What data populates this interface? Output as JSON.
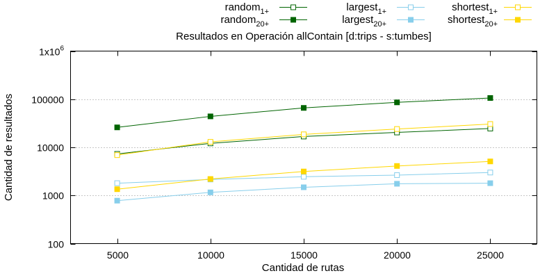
{
  "chart_data": {
    "type": "line",
    "title": "Resultados en Operación allContain [d:trips - s:tumbes]",
    "xlabel": "Cantidad de rutas",
    "ylabel": "Cantidad de resultados",
    "x": [
      5000,
      10000,
      15000,
      20000,
      25000
    ],
    "x_ticks": [
      "5000",
      "10000",
      "15000",
      "20000",
      "25000"
    ],
    "xlim": [
      2500,
      27500
    ],
    "y_scale": "log",
    "ylim": [
      100,
      1000000
    ],
    "y_ticks": [
      100,
      1000,
      10000,
      100000,
      1000000
    ],
    "y_tick_labels": [
      "100",
      "1000",
      "10000",
      "100000",
      "1x10"
    ],
    "y_tick_top_exponent": "6",
    "grid": "horizontal dotted",
    "legend_position": "top",
    "series": [
      {
        "name": "random",
        "subscript": "1+",
        "color": "#006400",
        "marker": "open-square",
        "values": [
          7300,
          12100,
          16800,
          20400,
          24600
        ]
      },
      {
        "name": "random",
        "subscript": "20+",
        "color": "#006400",
        "marker": "filled-square",
        "values": [
          26000,
          44000,
          66000,
          86000,
          106000
        ]
      },
      {
        "name": "largest",
        "subscript": "1+",
        "color": "#87CEEB",
        "marker": "open-square",
        "values": [
          1800,
          2150,
          2450,
          2650,
          3000
        ]
      },
      {
        "name": "largest",
        "subscript": "20+",
        "color": "#87CEEB",
        "marker": "filled-square",
        "values": [
          780,
          1160,
          1480,
          1750,
          1800
        ]
      },
      {
        "name": "shortest",
        "subscript": "1+",
        "color": "#FFD700",
        "marker": "open-square",
        "values": [
          6900,
          13000,
          18600,
          24000,
          30500
        ]
      },
      {
        "name": "shortest",
        "subscript": "20+",
        "color": "#FFD700",
        "marker": "filled-square",
        "values": [
          1350,
          2200,
          3150,
          4100,
          5100
        ]
      }
    ]
  }
}
